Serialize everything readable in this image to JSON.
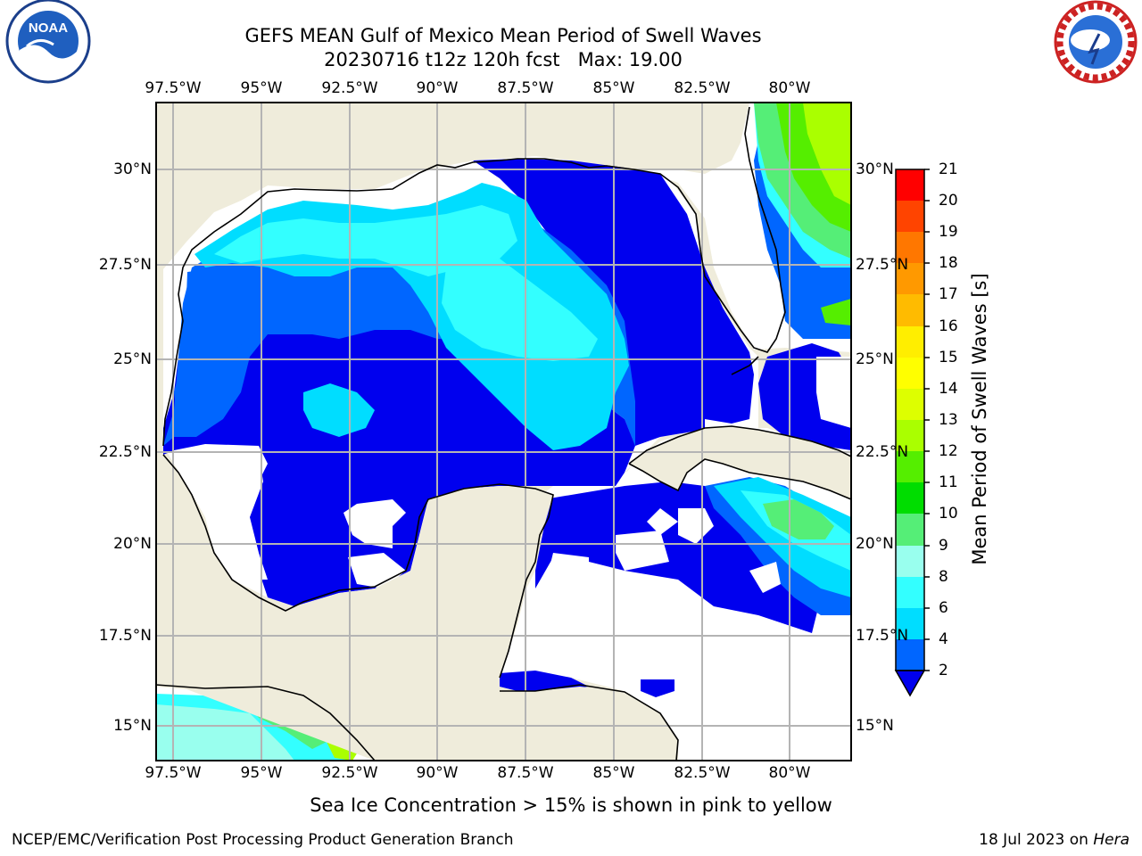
{
  "header": {
    "title_line1": "GEFS MEAN Gulf of Mexico Mean Period of Swell Waves",
    "title_line2": "20230716 t12z 120h fcst   Max: 19.00"
  },
  "logos": {
    "left": {
      "name": "noaa-logo",
      "text": "NOAA"
    },
    "right": {
      "name": "nws-logo",
      "text": "NATIONAL WEATHER SERVICE"
    }
  },
  "map": {
    "lon_labels": [
      "97.5°W",
      "95°W",
      "92.5°W",
      "90°W",
      "87.5°W",
      "85°W",
      "82.5°W",
      "80°W"
    ],
    "lat_labels_left": [
      "30°N",
      "27.5°N",
      "25°N",
      "22.5°N",
      "20°N",
      "17.5°N",
      "15°N"
    ],
    "lat_labels_right": [
      "30°N",
      "27.5°N",
      "25°N",
      "22.5°N",
      "20°N",
      "17.5°N",
      "15°N"
    ],
    "colors": {
      "land": "#efecdb",
      "ocean_blank": "#ffffff",
      "grid": "#b4b4b4",
      "coast": "#000000"
    }
  },
  "colorbar": {
    "title": "Mean Period of Swell Waves [s]",
    "ticks": [
      "21",
      "20",
      "19",
      "18",
      "17",
      "16",
      "15",
      "14",
      "13",
      "12",
      "11",
      "10",
      "9",
      "8",
      "6",
      "4",
      "2"
    ],
    "levels": [
      {
        "range": "2-4",
        "color": "#0066ff"
      },
      {
        "range": "4-6",
        "color": "#00ddff"
      },
      {
        "range": "6-8",
        "color": "#33ffff"
      },
      {
        "range": "8-9",
        "color": "#99ffee"
      },
      {
        "range": "9-10",
        "color": "#55ee77"
      },
      {
        "range": "10-11",
        "color": "#00dd00"
      },
      {
        "range": "11-12",
        "color": "#55ee00"
      },
      {
        "range": "12-13",
        "color": "#aaff00"
      },
      {
        "range": "13-14",
        "color": "#ddff00"
      },
      {
        "range": "14-15",
        "color": "#ffff00"
      },
      {
        "range": "15-16",
        "color": "#ffee00"
      },
      {
        "range": "16-17",
        "color": "#ffbb00"
      },
      {
        "range": "17-18",
        "color": "#ff9900"
      },
      {
        "range": "18-19",
        "color": "#ff7700"
      },
      {
        "range": "19-20",
        "color": "#ff4400"
      },
      {
        "range": "20-21",
        "color": "#ff0000"
      }
    ],
    "under_color": "#0000ee"
  },
  "subtitle": "Sea Ice Concentration > 15% is shown in pink to yellow",
  "footer": {
    "left": "NCEP/EMC/Verification Post Processing Product Generation Branch",
    "right_date": "18 Jul 2023 on",
    "right_host": "Hera"
  }
}
